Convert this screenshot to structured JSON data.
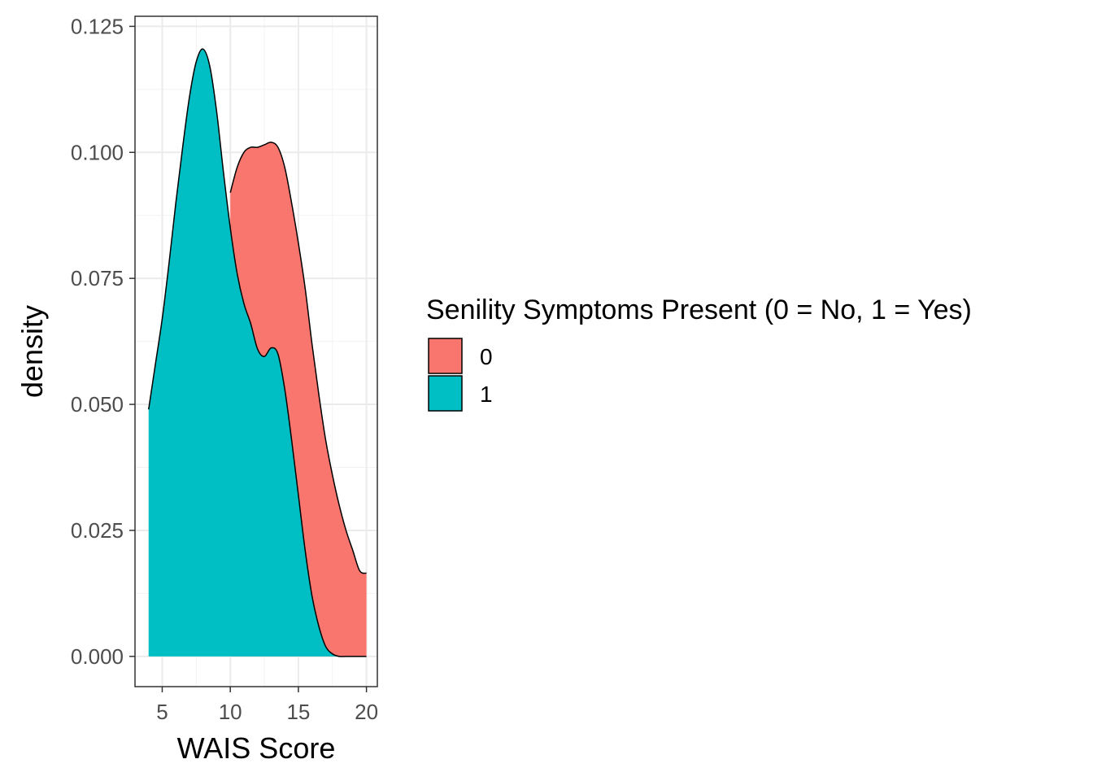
{
  "chart_data": {
    "type": "area",
    "xlabel": "WAIS Score",
    "ylabel": "density",
    "xlim": [
      3,
      20.8
    ],
    "ylim": [
      -0.006,
      0.127
    ],
    "x_ticks": [
      5,
      10,
      15,
      20
    ],
    "x_tick_labels": [
      "5",
      "10",
      "15",
      "20"
    ],
    "y_ticks": [
      0,
      0.025,
      0.05,
      0.075,
      0.1,
      0.125
    ],
    "y_tick_labels": [
      "0.000",
      "0.025",
      "0.050",
      "0.075",
      "0.100",
      "0.125"
    ],
    "grid": true,
    "legend": {
      "title": "Senility Symptoms Present (0 = No, 1 = Yes)",
      "placement": "right"
    },
    "series": [
      {
        "name": "0",
        "color": "#F8766D",
        "x": [
          10,
          10.5,
          11,
          11.5,
          12,
          12.5,
          13,
          13.5,
          14,
          14.5,
          15,
          15.5,
          16,
          16.5,
          17,
          17.5,
          18,
          18.5,
          19,
          19.5,
          20
        ],
        "y": [
          0.092,
          0.097,
          0.1,
          0.101,
          0.101,
          0.1015,
          0.102,
          0.101,
          0.097,
          0.09,
          0.082,
          0.073,
          0.062,
          0.052,
          0.043,
          0.036,
          0.03,
          0.025,
          0.021,
          0.017,
          0.0165
        ]
      },
      {
        "name": "1",
        "color": "#00BFC4",
        "x": [
          4,
          4.5,
          5,
          5.5,
          6,
          6.5,
          7,
          7.5,
          8,
          8.5,
          9,
          9.5,
          10,
          10.5,
          11,
          11.5,
          12,
          12.5,
          13,
          13.5,
          14,
          14.5,
          15,
          15.5,
          16,
          16.5,
          17,
          17.5,
          18,
          18.5,
          19,
          19.5,
          20
        ],
        "y": [
          0.049,
          0.058,
          0.067,
          0.078,
          0.09,
          0.101,
          0.111,
          0.118,
          0.1205,
          0.117,
          0.108,
          0.096,
          0.085,
          0.076,
          0.07,
          0.066,
          0.061,
          0.0595,
          0.0612,
          0.06,
          0.053,
          0.043,
          0.032,
          0.021,
          0.012,
          0.006,
          0.002,
          0.0005,
          0,
          0,
          0,
          0,
          0
        ]
      }
    ]
  }
}
